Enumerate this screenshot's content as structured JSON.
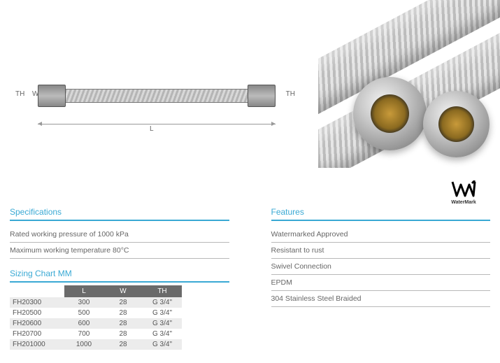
{
  "diagram": {
    "labels": {
      "L": "L",
      "W": "W",
      "TH_left": "TH",
      "TH_right": "TH"
    }
  },
  "watermark": {
    "label": "WaterMark"
  },
  "specifications": {
    "heading": "Specifications",
    "items": [
      "Rated working pressure of 1000 kPa",
      "Maximum working temperature 80°C"
    ]
  },
  "features": {
    "heading": "Features",
    "items": [
      "Watermarked Approved",
      "Resistant to rust",
      "Swivel Connection",
      "EPDM",
      "304 Stainless Steel Braided"
    ]
  },
  "sizing": {
    "heading": "Sizing Chart MM",
    "columns": [
      "",
      "L",
      "W",
      "TH"
    ],
    "rows": [
      {
        "code": "FH20300",
        "L": "300",
        "W": "28",
        "TH": "G 3/4\""
      },
      {
        "code": "FH20500",
        "L": "500",
        "W": "28",
        "TH": "G 3/4\""
      },
      {
        "code": "FH20600",
        "L": "600",
        "W": "28",
        "TH": "G 3/4\""
      },
      {
        "code": "FH20700",
        "L": "700",
        "W": "28",
        "TH": "G 3/4\""
      },
      {
        "code": "FH201000",
        "L": "1000",
        "W": "28",
        "TH": "G 3/4\""
      }
    ]
  },
  "colors": {
    "accent": "#3aa9d4",
    "text": "#555555",
    "rule": "#b8b8b8",
    "table_header_bg": "#6a6a6a",
    "table_odd_bg": "#ececec"
  }
}
